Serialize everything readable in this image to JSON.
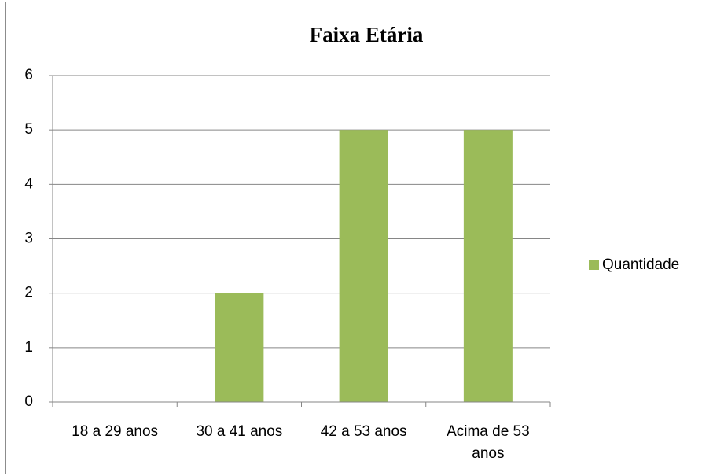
{
  "chart_data": {
    "type": "bar",
    "title": "Faixa Etária",
    "categories": [
      "18 a 29 anos",
      "30 a 41 anos",
      "42 a 53 anos",
      "Acima de 53 anos"
    ],
    "series": [
      {
        "name": "Quantidade",
        "color": "#9bbb59",
        "values": [
          0,
          2,
          5,
          5
        ]
      }
    ],
    "ylim": [
      0,
      6
    ],
    "yticks": [
      0,
      1,
      2,
      3,
      4,
      5,
      6
    ],
    "grid": true,
    "legend": "right"
  }
}
